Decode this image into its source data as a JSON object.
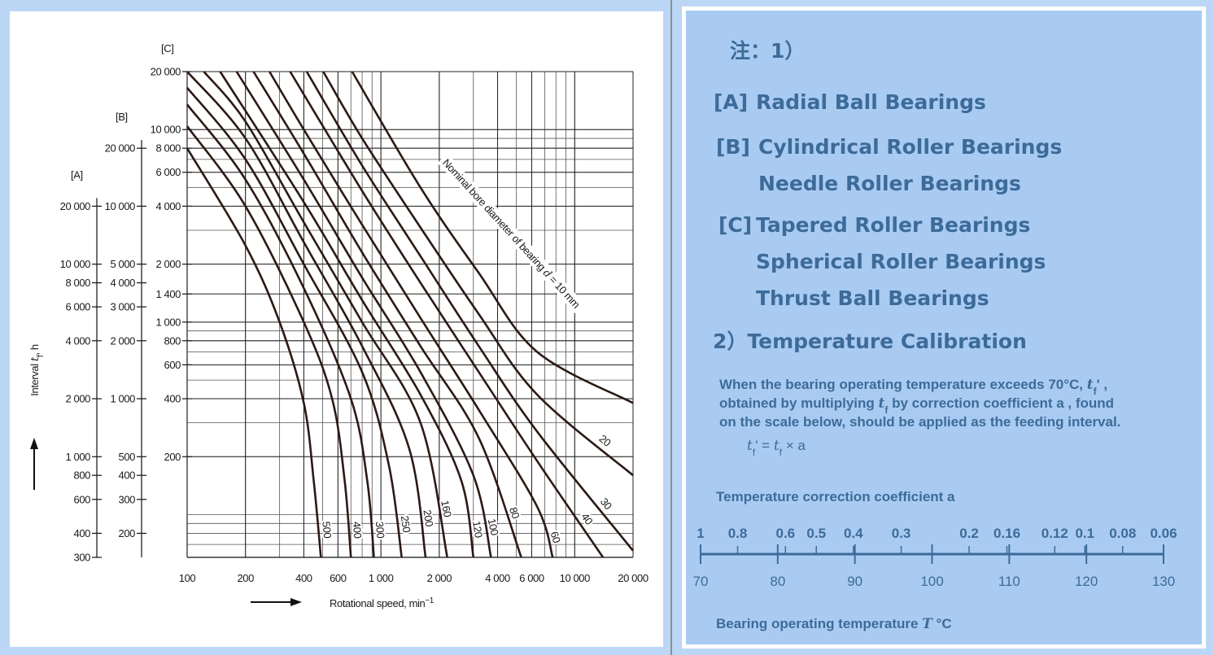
{
  "chart_data": {
    "type": "line",
    "xscale": "log",
    "yscale": "log",
    "grid": true,
    "x_label": {
      "text": "Rotational speed,  min",
      "sup": "−1"
    },
    "y_label": [
      {
        "text": "Interval "
      },
      {
        "text": "t",
        "italic": true
      },
      {
        "text": "f",
        "sub": true
      },
      {
        "text": ", h"
      }
    ],
    "annotation": [
      {
        "text": "Nominal bore diameter of bearing "
      },
      {
        "text": "d",
        "italic": true
      },
      {
        "text": " = 10 mm"
      }
    ],
    "xlim": [
      100,
      20000
    ],
    "xticks": [
      100,
      200,
      400,
      600,
      {
        "value": 1000,
        "label": "1 000"
      },
      {
        "value": 2000,
        "label": "2 000"
      },
      {
        "value": 4000,
        "label": "4 000"
      },
      {
        "value": 6000,
        "label": "6 000"
      },
      {
        "value": 10000,
        "label": "10 000"
      },
      {
        "value": 20000,
        "label": "20 000"
      }
    ],
    "series_axis": 2,
    "y_axes": [
      {
        "label": "[A]",
        "ylim": [
          300,
          100000
        ],
        "yticks": [
          {
            "value": 20000,
            "label": "20 000"
          },
          {
            "value": 10000,
            "label": "10 000"
          },
          {
            "value": 8000,
            "label": "8 000"
          },
          {
            "value": 6000,
            "label": "6 000"
          },
          {
            "value": 4000,
            "label": "4 000"
          },
          {
            "value": 2000,
            "label": "2 000"
          },
          {
            "value": 1000,
            "label": "1 000"
          },
          800,
          600,
          400,
          300
        ]
      },
      {
        "label": "[B]",
        "ylim": [
          150,
          50000
        ],
        "yticks": [
          {
            "value": 20000,
            "label": "20 000"
          },
          {
            "value": 10000,
            "label": "10 000"
          },
          {
            "value": 5000,
            "label": "5 000"
          },
          {
            "value": 4000,
            "label": "4 000"
          },
          {
            "value": 3000,
            "label": "3 000"
          },
          {
            "value": 2000,
            "label": "2 000"
          },
          {
            "value": 1000,
            "label": "1 000"
          },
          500,
          400,
          300,
          200
        ]
      },
      {
        "label": "[C]",
        "ylim": [
          60,
          20000
        ],
        "yticks": [
          {
            "value": 20000,
            "label": "20 000"
          },
          {
            "value": 10000,
            "label": "10 000"
          },
          {
            "value": 8000,
            "label": "8 000"
          },
          {
            "value": 6000,
            "label": "6 000"
          },
          {
            "value": 4000,
            "label": "4 000"
          },
          {
            "value": 2000,
            "label": "2 000"
          },
          {
            "value": 1400,
            "label": "1 400"
          },
          {
            "value": 1000,
            "label": "1 000"
          },
          800,
          600,
          400,
          200
        ]
      }
    ],
    "series": [
      {
        "name": "500",
        "color": "#2b1a14",
        "x": [
          100,
          200,
          300,
          400,
          450,
          490
        ],
        "values": [
          8000,
          2500,
          1000,
          380,
          150,
          60
        ]
      },
      {
        "name": "400",
        "color": "#2b1a14",
        "x": [
          100,
          200,
          400,
          560,
          650,
          700
        ],
        "values": [
          10400,
          4000,
          1000,
          400,
          150,
          60
        ]
      },
      {
        "name": "300",
        "color": "#2b1a14",
        "x": [
          100,
          200,
          400,
          700,
          850,
          920
        ],
        "values": [
          13500,
          5500,
          1500,
          400,
          150,
          60
        ]
      },
      {
        "name": "250",
        "color": "#2b1a14",
        "x": [
          100,
          200,
          400,
          800,
          1100,
          1280
        ],
        "values": [
          16500,
          7000,
          2000,
          550,
          180,
          60
        ]
      },
      {
        "name": "200",
        "color": "#2b1a14",
        "x": [
          100,
          200,
          400,
          800,
          1400,
          1700
        ],
        "values": [
          20000,
          9000,
          2600,
          750,
          220,
          60
        ]
      },
      {
        "name": "160",
        "color": "#2b1a14",
        "x": [
          122,
          200,
          400,
          800,
          1600,
          2200
        ],
        "values": [
          20000,
          11000,
          3300,
          1000,
          300,
          60
        ]
      },
      {
        "name": "120",
        "color": "#2b1a14",
        "x": [
          148,
          400,
          800,
          1600,
          2600,
          3000
        ],
        "values": [
          20000,
          4200,
          1300,
          420,
          150,
          60
        ]
      },
      {
        "name": "100",
        "color": "#2b1a14",
        "x": [
          180,
          400,
          800,
          1600,
          3000,
          3700
        ],
        "values": [
          20000,
          5500,
          1700,
          550,
          160,
          60
        ]
      },
      {
        "name": "80",
        "color": "#2b1a14",
        "x": [
          220,
          400,
          800,
          1600,
          3200,
          5300
        ],
        "values": [
          20000,
          7500,
          2300,
          750,
          250,
          60
        ]
      },
      {
        "name": "60",
        "color": "#2b1a14",
        "x": [
          266,
          400,
          800,
          1600,
          3200,
          6400,
          7700
        ],
        "values": [
          20000,
          10000,
          3200,
          1050,
          350,
          110,
          60
        ]
      },
      {
        "name": "40",
        "color": "#2b1a14",
        "x": [
          340,
          800,
          1600,
          3200,
          6400,
          14000
        ],
        "values": [
          20000,
          4800,
          1600,
          550,
          190,
          60
        ]
      },
      {
        "name": "30",
        "color": "#2b1a14",
        "x": [
          414,
          800,
          1600,
          3200,
          6400,
          20000
        ],
        "values": [
          20000,
          6500,
          2200,
          750,
          270,
          65
        ]
      },
      {
        "name": "20",
        "color": "#2b1a14",
        "x": [
          504,
          800,
          1600,
          3200,
          6400,
          20000
        ],
        "values": [
          20000,
          9000,
          3100,
          1100,
          420,
          160
        ]
      },
      {
        "color": "#2b1a14",
        "x": [
          710,
          1600,
          3200,
          6400,
          20000
        ],
        "values": [
          20000,
          5000,
          1800,
          700,
          380
        ]
      }
    ]
  },
  "notes": {
    "heading": "注：1）",
    "groups": [
      {
        "tag": "[A]",
        "items": [
          "Radial Ball Bearings"
        ]
      },
      {
        "tag": "[B]",
        "items": [
          "Cylindrical Roller Bearings",
          "Needle Roller Bearings"
        ]
      },
      {
        "tag": "[C]",
        "items": [
          "Tapered Roller Bearings",
          "Spherical Roller Bearings",
          "Thrust Ball Bearings"
        ]
      }
    ],
    "section2": "2）Temperature Calibration",
    "paragraph": [
      [
        {
          "text": "When the bearing operating temperature exceeds 70°C, "
        },
        {
          "text": "t",
          "italic": true
        },
        {
          "text": "f",
          "sub": true
        },
        {
          "text": "' ,"
        }
      ],
      [
        {
          "text": "obtained by multiplying  "
        },
        {
          "text": "t",
          "italic": true
        },
        {
          "text": "f",
          "sub": true
        },
        {
          "text": "  by correction coefficient  a , found"
        }
      ],
      [
        {
          "text": "on the scale below, should be applied as the feeding interval."
        }
      ]
    ],
    "formula": [
      {
        "text": "t",
        "italic": true
      },
      {
        "text": "f",
        "sub": true
      },
      {
        "text": "' = "
      },
      {
        "text": "t",
        "italic": true
      },
      {
        "text": "f",
        "sub": true
      },
      {
        "text": " × a"
      }
    ],
    "scale": {
      "title": "Temperature correction coefficient  a",
      "label": [
        {
          "text": "Bearing operating temperature  "
        },
        {
          "text": "T",
          "italic": true
        },
        {
          "text": " °C"
        }
      ],
      "temperature_lim": [
        70,
        130
      ],
      "temperature_ticks": [
        70,
        80,
        90,
        100,
        110,
        120,
        130
      ],
      "coefficient_ticks": [
        {
          "value": 1,
          "at": 70
        },
        {
          "value": 0.8,
          "at": 74.8
        },
        {
          "value": 0.6,
          "at": 81
        },
        {
          "value": 0.5,
          "at": 85
        },
        {
          "value": 0.4,
          "at": 89.8
        },
        {
          "value": 0.3,
          "at": 96
        },
        {
          "value": 0.2,
          "at": 104.8
        },
        {
          "value": 0.16,
          "at": 109.7
        },
        {
          "value": 0.12,
          "at": 115.9
        },
        {
          "value": 0.1,
          "at": 119.8
        },
        {
          "value": 0.08,
          "at": 124.7
        },
        {
          "value": 0.06,
          "at": 130
        }
      ]
    }
  }
}
